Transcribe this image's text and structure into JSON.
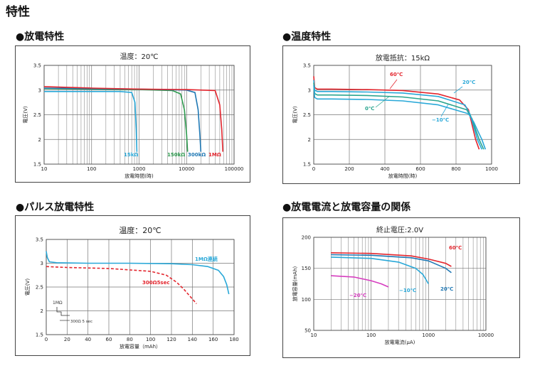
{
  "page": {
    "title": "特性",
    "sections": [
      "●放電特性",
      "●温度特性",
      "●パルス放電特性",
      "●放電電流と放電容量の関係"
    ]
  },
  "chart_data": [
    {
      "type": "line",
      "title": "温度：20℃",
      "xlabel": "放電時間(時)",
      "ylabel": "電圧(V)",
      "xscale": "log",
      "xlim": [
        10,
        100000
      ],
      "ylim": [
        1.5,
        3.5
      ],
      "xticks": [
        "10",
        "100",
        "1000",
        "10000",
        "100000"
      ],
      "yticks": [
        "1.5",
        "2",
        "2.5",
        "3",
        "3.5"
      ],
      "grid": true,
      "series": [
        {
          "name": "15kΩ",
          "color": "#29a8d8",
          "x": [
            10,
            30,
            100,
            400,
            700,
            820,
            870,
            900
          ],
          "y": [
            2.97,
            2.97,
            2.97,
            2.97,
            2.95,
            2.75,
            2.2,
            1.75
          ]
        },
        {
          "name": "150kΩ",
          "color": "#2e9b4f",
          "x": [
            10,
            100,
            1000,
            5000,
            7500,
            9000,
            10000,
            10500
          ],
          "y": [
            3.03,
            3.02,
            3.01,
            2.99,
            2.92,
            2.6,
            2.1,
            1.75
          ]
        },
        {
          "name": "300kΩ",
          "color": "#1f78b4",
          "x": [
            10,
            100,
            1000,
            10000,
            15000,
            17500,
            19000,
            20000
          ],
          "y": [
            3.04,
            3.03,
            3.02,
            3.0,
            2.95,
            2.6,
            2.1,
            1.75
          ]
        },
        {
          "name": "1MΩ",
          "color": "#e3262e",
          "x": [
            10,
            100,
            1000,
            10000,
            40000,
            50000,
            55000,
            58000
          ],
          "y": [
            3.07,
            3.04,
            3.02,
            3.01,
            2.99,
            2.7,
            2.2,
            1.75
          ]
        }
      ]
    },
    {
      "type": "line",
      "title": "放電抵抗：15kΩ",
      "xlabel": "放電時間(時)",
      "ylabel": "電圧(V)",
      "xlim": [
        0,
        1000
      ],
      "ylim": [
        1.5,
        3.5
      ],
      "xticks": [
        "0",
        "200",
        "400",
        "600",
        "800",
        "1000"
      ],
      "yticks": [
        "1.5",
        "2",
        "2.5",
        "3",
        "3.5"
      ],
      "grid": true,
      "series": [
        {
          "name": "60℃",
          "color": "#e3262e",
          "x": [
            0,
            5,
            20,
            100,
            300,
            500,
            700,
            820,
            870,
            890,
            910,
            930
          ],
          "y": [
            3.28,
            3.05,
            3.02,
            3.02,
            3.01,
            2.99,
            2.92,
            2.8,
            2.6,
            2.3,
            2.0,
            1.8
          ]
        },
        {
          "name": "20℃",
          "color": "#29a8d8",
          "x": [
            0,
            5,
            20,
            100,
            300,
            500,
            700,
            850,
            880,
            900,
            920,
            945
          ],
          "y": [
            3.2,
            3.0,
            2.97,
            2.97,
            2.96,
            2.94,
            2.87,
            2.7,
            2.5,
            2.25,
            2.0,
            1.8
          ]
        },
        {
          "name": "0℃",
          "color": "#2aa58f",
          "x": [
            0,
            5,
            20,
            100,
            300,
            500,
            700,
            860,
            890,
            910,
            930,
            955
          ],
          "y": [
            3.15,
            2.93,
            2.9,
            2.9,
            2.89,
            2.86,
            2.78,
            2.6,
            2.42,
            2.2,
            2.0,
            1.8
          ]
        },
        {
          "name": "−10℃",
          "color": "#29a8d8",
          "x": [
            0,
            5,
            20,
            100,
            300,
            500,
            700,
            870,
            900,
            925,
            945,
            965
          ],
          "y": [
            3.1,
            2.85,
            2.82,
            2.82,
            2.81,
            2.78,
            2.7,
            2.52,
            2.35,
            2.15,
            2.0,
            1.8
          ]
        }
      ],
      "annotations": [
        "60℃",
        "20℃",
        "0℃",
        "−10℃"
      ]
    },
    {
      "type": "line",
      "title": "温度：20℃",
      "xlabel": "放電容量（mAh）",
      "ylabel": "電圧(V)",
      "xlim": [
        0,
        180
      ],
      "ylim": [
        1.5,
        3.5
      ],
      "xticks": [
        "0",
        "20",
        "40",
        "60",
        "80",
        "100",
        "120",
        "140",
        "160",
        "180"
      ],
      "yticks": [
        "1.5",
        "2",
        "2.5",
        "3",
        "3.5"
      ],
      "grid": true,
      "series": [
        {
          "name": "1MΩ連続",
          "color": "#29a8d8",
          "x": [
            0,
            1,
            3,
            10,
            40,
            80,
            120,
            140,
            155,
            165,
            170,
            173,
            175
          ],
          "y": [
            3.25,
            3.12,
            3.03,
            3.01,
            3.0,
            3.0,
            2.99,
            2.97,
            2.93,
            2.85,
            2.72,
            2.55,
            2.35
          ]
        },
        {
          "name": "300Ω5sec",
          "color": "#e3262e",
          "dashed": true,
          "x": [
            0,
            20,
            60,
            100,
            115,
            125,
            132,
            138,
            144
          ],
          "y": [
            2.93,
            2.91,
            2.89,
            2.83,
            2.75,
            2.6,
            2.45,
            2.3,
            2.15
          ]
        }
      ],
      "inset": {
        "labels": [
          "1MΩ",
          "300Ω 5 sec"
        ]
      }
    },
    {
      "type": "line",
      "title": "終止電圧:2.0V",
      "xlabel": "放電電流(μA)",
      "ylabel": "放電容量(mAh)",
      "xscale": "log",
      "xlim": [
        10,
        10000
      ],
      "ylim": [
        50,
        200
      ],
      "xticks": [
        "10",
        "100",
        "1000",
        "10000"
      ],
      "yticks": [
        "50",
        "100",
        "150",
        "200"
      ],
      "grid": true,
      "series": [
        {
          "name": "60℃",
          "color": "#e3262e",
          "x": [
            20,
            100,
            500,
            1000,
            2000,
            2500
          ],
          "y": [
            175,
            174,
            170,
            165,
            158,
            153
          ]
        },
        {
          "name": "20℃",
          "color": "#1f78b4",
          "x": [
            20,
            100,
            500,
            1000,
            2000,
            2500
          ],
          "y": [
            172,
            171,
            167,
            162,
            150,
            143
          ]
        },
        {
          "name": "−10℃",
          "color": "#29a8d8",
          "x": [
            20,
            100,
            300,
            600,
            800,
            1000
          ],
          "y": [
            168,
            166,
            160,
            150,
            140,
            125
          ]
        },
        {
          "name": "−20℃",
          "color": "#d63dbf",
          "x": [
            20,
            50,
            100,
            150,
            200
          ],
          "y": [
            138,
            136,
            130,
            125,
            120
          ]
        }
      ],
      "annotations": [
        "60℃",
        "20℃",
        "−10℃",
        "−20℃"
      ]
    }
  ]
}
